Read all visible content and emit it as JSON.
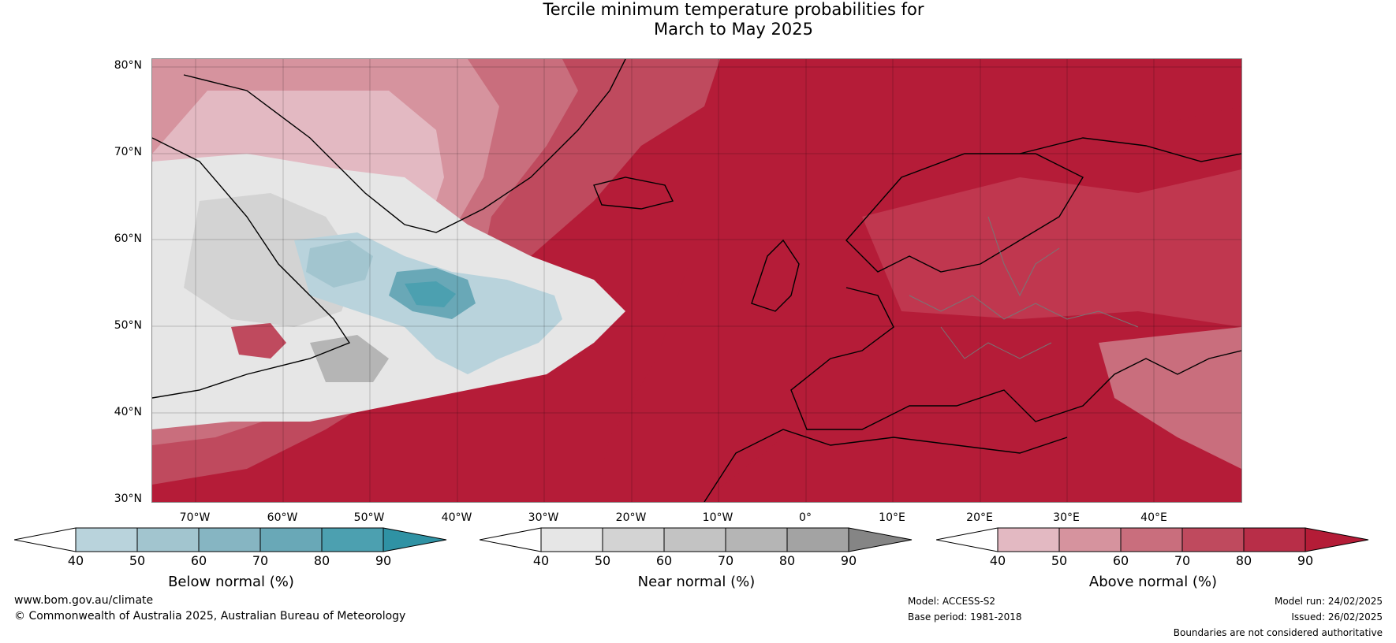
{
  "title": {
    "line1": "Tercile minimum temperature probabilities for",
    "line2": "March to May 2025"
  },
  "map": {
    "lat_labels": [
      "80°N",
      "70°N",
      "60°N",
      "50°N",
      "40°N",
      "30°N"
    ],
    "lon_labels": [
      "70°W",
      "60°W",
      "50°W",
      "40°W",
      "30°W",
      "20°W",
      "10°W",
      "0°",
      "10°E",
      "20°E",
      "30°E",
      "40°E"
    ],
    "colors": {
      "below": [
        "#b9d3dc",
        "#a2c5cf",
        "#86b5c2",
        "#69a8b7",
        "#4ca0b0",
        "#2f92a4"
      ],
      "near": [
        "#e6e6e6",
        "#d3d3d3",
        "#c3c3c3",
        "#b5b5b5",
        "#a3a3a3",
        "#858585"
      ],
      "above": [
        "#e3b9c2",
        "#d6939e",
        "#c96e7d",
        "#bf4a5e",
        "#b51c38",
        "#b41c37"
      ]
    }
  },
  "colorbars": [
    {
      "name": "below-normal",
      "label": "Below normal (%)",
      "ticks": [
        "40",
        "50",
        "60",
        "70",
        "80",
        "90"
      ]
    },
    {
      "name": "near-normal",
      "label": "Near normal (%)",
      "ticks": [
        "40",
        "50",
        "60",
        "70",
        "80",
        "90"
      ]
    },
    {
      "name": "above-normal",
      "label": "Above normal (%)",
      "ticks": [
        "40",
        "50",
        "60",
        "70",
        "80",
        "90"
      ]
    }
  ],
  "footer": {
    "website": "www.bom.gov.au/climate",
    "copyright": "© Commonwealth of Australia 2025, Australian Bureau of Meteorology",
    "model": "Model: ACCESS-S2",
    "base_period": "Base period: 1981-2018",
    "model_run": "Model run: 24/02/2025",
    "issued": "Issued: 26/02/2025",
    "disclaimer": "Boundaries are not considered authoritative"
  }
}
